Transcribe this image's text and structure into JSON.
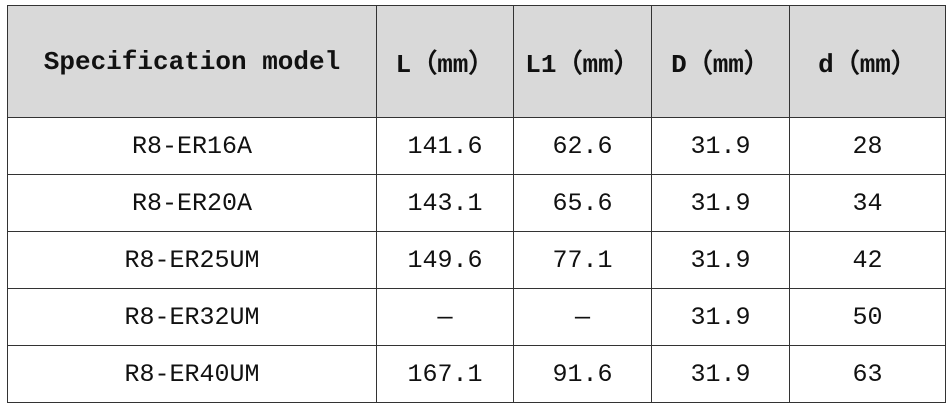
{
  "table": {
    "header": [
      "Specification model",
      "L（mm）",
      "L1（mm）",
      "D（mm）",
      "d（mm）"
    ],
    "rows": [
      [
        "R8-ER16A",
        "141.6",
        "62.6",
        "31.9",
        "28"
      ],
      [
        "R8-ER20A",
        "143.1",
        "65.6",
        "31.9",
        "34"
      ],
      [
        "R8-ER25UM",
        "149.6",
        "77.1",
        "31.9",
        "42"
      ],
      [
        "R8-ER32UM",
        "—",
        "—",
        "31.9",
        "50"
      ],
      [
        "R8-ER40UM",
        "167.1",
        "91.6",
        "31.9",
        "63"
      ]
    ]
  }
}
